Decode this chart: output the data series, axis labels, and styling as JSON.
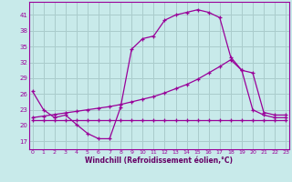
{
  "background_color": "#c8eaea",
  "grid_color": "#aacccc",
  "line_color": "#990099",
  "xlabel": "Windchill (Refroidissement éolien,°C)",
  "xlabel_color": "#660066",
  "yticks": [
    17,
    20,
    23,
    26,
    29,
    32,
    35,
    38,
    41
  ],
  "xticks": [
    0,
    1,
    2,
    3,
    4,
    5,
    6,
    7,
    8,
    9,
    10,
    11,
    12,
    13,
    14,
    15,
    16,
    17,
    18,
    19,
    20,
    21,
    22,
    23
  ],
  "xlim": [
    -0.3,
    23.3
  ],
  "ylim": [
    15.5,
    43.5
  ],
  "line1_x": [
    0,
    1,
    2,
    3,
    4,
    5,
    6,
    7,
    8,
    9,
    10,
    11,
    12,
    13,
    14,
    15,
    16,
    17,
    18,
    19,
    20,
    21,
    22,
    23
  ],
  "line1_y": [
    26.5,
    23.0,
    21.5,
    22.0,
    20.2,
    18.5,
    17.5,
    17.5,
    23.5,
    34.5,
    36.5,
    37.0,
    40.0,
    41.0,
    41.5,
    42.0,
    41.5,
    40.5,
    33.0,
    30.5,
    23.0,
    22.0,
    21.5,
    21.5
  ],
  "line2_x": [
    0,
    1,
    2,
    3,
    4,
    5,
    6,
    7,
    8,
    9,
    10,
    11,
    12,
    13,
    14,
    15,
    16,
    17,
    18,
    19,
    20,
    21,
    22,
    23
  ],
  "line2_y": [
    21.0,
    21.0,
    21.0,
    21.0,
    21.0,
    21.0,
    21.0,
    21.0,
    21.0,
    21.0,
    21.0,
    21.0,
    21.0,
    21.0,
    21.0,
    21.0,
    21.0,
    21.0,
    21.0,
    21.0,
    21.0,
    21.0,
    21.0,
    21.0
  ],
  "line3_x": [
    0,
    1,
    2,
    3,
    4,
    5,
    6,
    7,
    8,
    9,
    10,
    11,
    12,
    13,
    14,
    15,
    16,
    17,
    18,
    19,
    20,
    21,
    22,
    23
  ],
  "line3_y": [
    21.5,
    21.8,
    22.1,
    22.4,
    22.7,
    23.0,
    23.3,
    23.6,
    24.0,
    24.5,
    25.0,
    25.5,
    26.2,
    27.0,
    27.8,
    28.8,
    30.0,
    31.2,
    32.5,
    30.5,
    30.0,
    22.5,
    22.0,
    22.0
  ]
}
